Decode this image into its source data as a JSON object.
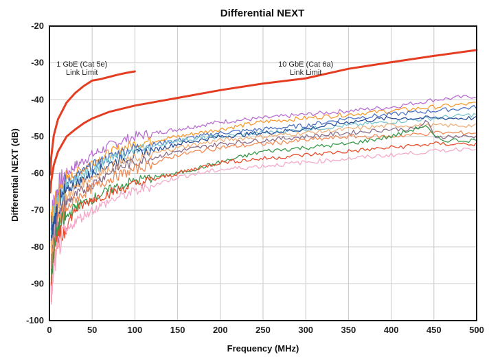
{
  "chart_data": {
    "type": "line",
    "title": "Differential NEXT",
    "xlabel": "Frequency (MHz)",
    "ylabel": "Differential NEXT (dB)",
    "xlim": [
      0,
      500
    ],
    "ylim": [
      -100,
      -20
    ],
    "xticks": [
      0,
      50,
      100,
      150,
      200,
      250,
      300,
      350,
      400,
      450,
      500
    ],
    "yticks": [
      -100,
      -90,
      -80,
      -70,
      -60,
      -50,
      -40,
      -30,
      -20
    ],
    "grid": true,
    "legend": "none",
    "annotations": [
      {
        "lines": [
          "1 GbE (Cat 5e)",
          "Link Limit"
        ],
        "x": 38,
        "y": -31
      },
      {
        "lines": [
          "10 GbE (Cat 6a)",
          "Link Limit"
        ],
        "x": 300,
        "y": -31
      }
    ],
    "limit_lines": [
      {
        "label": "1 GbE (Cat 5e) Link Limit",
        "color": "#e53d22",
        "x": [
          1,
          2,
          5,
          10,
          20,
          30,
          40,
          50,
          60,
          70,
          80,
          90,
          100
        ],
        "y": [
          -60.3,
          -55.8,
          -49.8,
          -45.3,
          -40.8,
          -38.2,
          -36.3,
          -34.8,
          -34.4,
          -33.8,
          -33.2,
          -32.7,
          -32.3
        ]
      },
      {
        "label": "10 GbE (Cat 6a) Link Limit",
        "color": "#e53d22",
        "x": [
          1,
          2,
          5,
          10,
          20,
          30,
          40,
          50,
          70,
          100,
          150,
          200,
          250,
          300,
          350,
          400,
          450,
          500
        ],
        "y": [
          -65.2,
          -62.2,
          -57.8,
          -54.1,
          -50.0,
          -48.1,
          -46.4,
          -45.1,
          -43.3,
          -41.6,
          -39.5,
          -37.4,
          -35.6,
          -34.2,
          -31.6,
          -29.8,
          -28.1,
          -26.5
        ]
      }
    ],
    "series": [
      {
        "color": "#b96fd2",
        "x": [
          2,
          5,
          10,
          20,
          30,
          50,
          75,
          100,
          150,
          200,
          250,
          300,
          350,
          400,
          450,
          500
        ],
        "y": [
          -72,
          -68,
          -64,
          -60,
          -58,
          -55,
          -52,
          -50,
          -48,
          -46,
          -45,
          -44,
          -43,
          -42,
          -40,
          -39
        ]
      },
      {
        "color": "#f59b2f",
        "x": [
          2,
          5,
          10,
          20,
          30,
          50,
          75,
          100,
          150,
          200,
          250,
          300,
          350,
          400,
          450,
          500
        ],
        "y": [
          -74,
          -70,
          -66,
          -62,
          -60,
          -57,
          -54,
          -52,
          -50,
          -48,
          -46,
          -45,
          -44,
          -43,
          -42,
          -41
        ]
      },
      {
        "color": "#4c72c4",
        "x": [
          2,
          5,
          10,
          20,
          30,
          50,
          75,
          100,
          150,
          200,
          250,
          300,
          350,
          400,
          450,
          500
        ],
        "y": [
          -76,
          -71,
          -67,
          -63,
          -61,
          -58,
          -55,
          -53,
          -51,
          -49,
          -48,
          -47,
          -45,
          -44,
          -43,
          -42
        ]
      },
      {
        "color": "#7bc7cf",
        "x": [
          2,
          5,
          10,
          20,
          30,
          50,
          75,
          100,
          150,
          200,
          250,
          300,
          350,
          400,
          450,
          500
        ],
        "y": [
          -78,
          -72,
          -68,
          -64,
          -62,
          -59,
          -56,
          -54,
          -51,
          -50,
          -49,
          -48,
          -47,
          -46,
          -45,
          -44
        ]
      },
      {
        "color": "#2a4f99",
        "x": [
          2,
          5,
          10,
          20,
          30,
          50,
          75,
          100,
          150,
          200,
          250,
          300,
          350,
          400,
          450,
          500
        ],
        "y": [
          -80,
          -74,
          -69,
          -65,
          -63,
          -60,
          -57,
          -55,
          -52,
          -50,
          -49,
          -48,
          -46,
          -45,
          -45,
          -45
        ]
      },
      {
        "color": "#f0b07a",
        "x": [
          2,
          5,
          10,
          20,
          30,
          50,
          75,
          100,
          150,
          200,
          250,
          300,
          350,
          400,
          450,
          500
        ],
        "y": [
          -82,
          -76,
          -71,
          -67,
          -64,
          -61,
          -58,
          -56,
          -53,
          -51,
          -50,
          -49,
          -48,
          -47,
          -47,
          -47
        ]
      },
      {
        "color": "#8a6f8a",
        "x": [
          2,
          5,
          10,
          20,
          30,
          50,
          75,
          100,
          150,
          200,
          250,
          300,
          350,
          400,
          430,
          440,
          445,
          450,
          500
        ],
        "y": [
          -86,
          -78,
          -73,
          -68,
          -66,
          -63,
          -59,
          -57,
          -54,
          -52,
          -51,
          -50,
          -49,
          -48,
          -48,
          -46,
          -47,
          -50,
          -50
        ]
      },
      {
        "color": "#f08a55",
        "x": [
          2,
          5,
          10,
          20,
          30,
          50,
          75,
          100,
          150,
          200,
          250,
          300,
          350,
          400,
          450,
          500
        ],
        "y": [
          -88,
          -80,
          -74,
          -70,
          -67,
          -64,
          -61,
          -59,
          -55,
          -53,
          -52,
          -51,
          -50,
          -50,
          -49,
          -49
        ]
      },
      {
        "color": "#38984a",
        "x": [
          2,
          5,
          10,
          20,
          30,
          50,
          75,
          100,
          150,
          200,
          250,
          300,
          350,
          400,
          440,
          450,
          460,
          500
        ],
        "y": [
          -90,
          -82,
          -76,
          -72,
          -69,
          -67,
          -64,
          -62,
          -60,
          -57,
          -54,
          -53,
          -52,
          -50,
          -47,
          -50,
          -51,
          -51
        ]
      },
      {
        "color": "#e84a2a",
        "x": [
          2,
          5,
          10,
          20,
          30,
          50,
          75,
          100,
          150,
          200,
          250,
          300,
          350,
          400,
          450,
          500
        ],
        "y": [
          -92,
          -84,
          -79,
          -74,
          -70,
          -67,
          -65,
          -63,
          -60,
          -57,
          -56,
          -55,
          -54,
          -53,
          -52,
          -52
        ]
      },
      {
        "color": "#f4a9c9",
        "x": [
          2,
          5,
          10,
          20,
          30,
          50,
          75,
          100,
          150,
          200,
          250,
          300,
          350,
          400,
          450,
          500
        ],
        "y": [
          -94,
          -86,
          -80,
          -76,
          -73,
          -70,
          -67,
          -65,
          -61,
          -59,
          -58,
          -57,
          -56,
          -55,
          -54,
          -53
        ]
      }
    ]
  }
}
